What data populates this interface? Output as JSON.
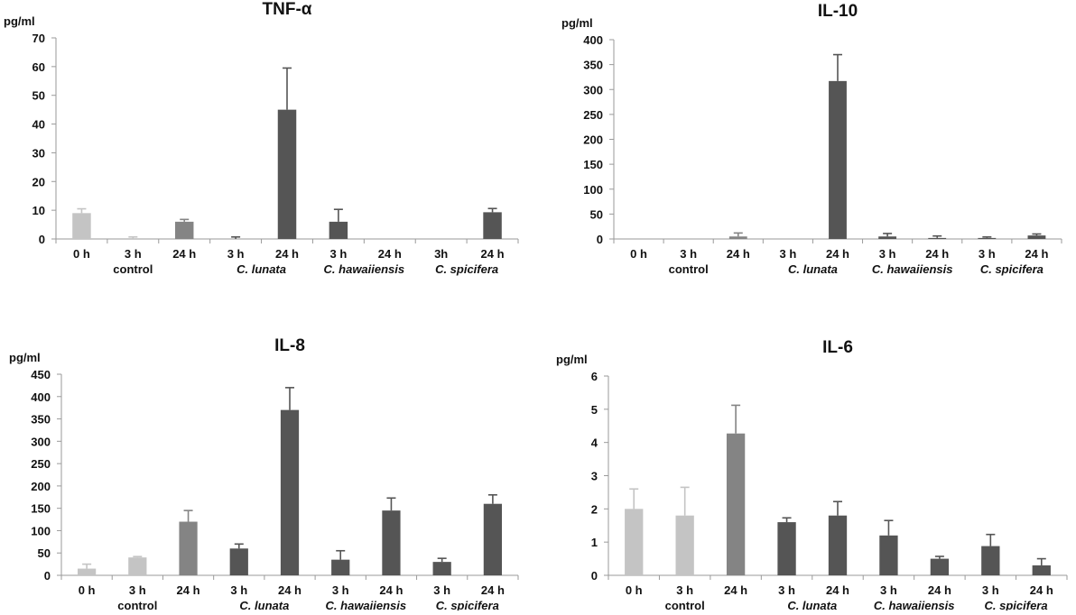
{
  "colors": {
    "light": "#c4c4c4",
    "medium": "#848484",
    "dark": "#555555",
    "error": "#555555",
    "axis": "#9a9a9a"
  },
  "chart_data": [
    {
      "id": "tnf",
      "type": "bar",
      "title": "TNF-α",
      "ylabel": "pg/ml",
      "ylim": [
        0,
        70
      ],
      "yticks": [
        0,
        10,
        20,
        30,
        40,
        50,
        60,
        70
      ],
      "categories": [
        "0 h",
        "3 h",
        "24 h",
        "3 h",
        "24 h",
        "3 h",
        "24 h",
        "3h",
        "24 h"
      ],
      "values": [
        9,
        0,
        6,
        0,
        45,
        6,
        0,
        0,
        9.3
      ],
      "errors": [
        1.5,
        0.7,
        0.8,
        0.7,
        14.5,
        4.3,
        0,
        0,
        1.3
      ],
      "bar_colors": [
        "light",
        "light",
        "medium",
        "dark",
        "dark",
        "dark",
        "dark",
        "dark",
        "dark"
      ],
      "groups": [
        {
          "label": "control",
          "italic": false,
          "start": 0,
          "end": 2
        },
        {
          "label": "C. lunata",
          "italic": true,
          "start": 3,
          "end": 4
        },
        {
          "label": "C. hawaiiensis",
          "italic": true,
          "start": 5,
          "end": 6
        },
        {
          "label": "C. spicifera",
          "italic": true,
          "start": 7,
          "end": 8
        }
      ]
    },
    {
      "id": "il10",
      "type": "bar",
      "title": "IL-10",
      "ylabel": "pg/ml",
      "ylim": [
        0,
        400
      ],
      "yticks": [
        0,
        50,
        100,
        150,
        200,
        250,
        300,
        350,
        400
      ],
      "categories": [
        "0 h",
        "3 h",
        "24 h",
        "3 h",
        "24 h",
        "3 h",
        "24 h",
        "3 h",
        "24 h"
      ],
      "values": [
        0,
        0,
        5,
        0,
        317,
        5,
        2,
        2,
        7
      ],
      "errors": [
        0,
        0,
        7,
        0,
        53,
        6,
        4,
        2,
        3
      ],
      "bar_colors": [
        "light",
        "light",
        "medium",
        "dark",
        "dark",
        "dark",
        "dark",
        "dark",
        "dark"
      ],
      "groups": [
        {
          "label": "control",
          "italic": false,
          "start": 0,
          "end": 2
        },
        {
          "label": "C. lunata",
          "italic": true,
          "start": 3,
          "end": 4
        },
        {
          "label": "C. hawaiiensis",
          "italic": true,
          "start": 5,
          "end": 6
        },
        {
          "label": "C. spicifera",
          "italic": true,
          "start": 7,
          "end": 8
        }
      ]
    },
    {
      "id": "il8",
      "type": "bar",
      "title": "IL-8",
      "ylabel": "pg/ml",
      "ylim": [
        0,
        450
      ],
      "yticks": [
        0,
        50,
        100,
        150,
        200,
        250,
        300,
        350,
        400,
        450
      ],
      "categories": [
        "0 h",
        "3 h",
        "24 h",
        "3 h",
        "24 h",
        "3 h",
        "24 h",
        "3 h",
        "24 h"
      ],
      "values": [
        15,
        40,
        120,
        60,
        370,
        35,
        145,
        30,
        160
      ],
      "errors": [
        10,
        2,
        25,
        10,
        50,
        20,
        28,
        8,
        20
      ],
      "bar_colors": [
        "light",
        "light",
        "medium",
        "dark",
        "dark",
        "dark",
        "dark",
        "dark",
        "dark"
      ],
      "groups": [
        {
          "label": "control",
          "italic": false,
          "start": 0,
          "end": 2
        },
        {
          "label": "C. lunata",
          "italic": true,
          "start": 3,
          "end": 4
        },
        {
          "label": "C. hawaiiensis",
          "italic": true,
          "start": 5,
          "end": 6
        },
        {
          "label": "C. spicifera",
          "italic": true,
          "start": 7,
          "end": 8
        }
      ]
    },
    {
      "id": "il6",
      "type": "bar",
      "title": "IL-6",
      "ylabel": "pg/ml",
      "ylim": [
        0,
        6
      ],
      "yticks": [
        0,
        1,
        2,
        3,
        4,
        5,
        6
      ],
      "categories": [
        "0 h",
        "3 h",
        "24 h",
        "3 h",
        "24 h",
        "3 h",
        "24 h",
        "3 h",
        "24 h"
      ],
      "values": [
        2.0,
        1.8,
        4.27,
        1.6,
        1.8,
        1.2,
        0.5,
        0.88,
        0.3
      ],
      "errors": [
        0.6,
        0.85,
        0.85,
        0.13,
        0.42,
        0.45,
        0.07,
        0.35,
        0.2
      ],
      "bar_colors": [
        "light",
        "light",
        "medium",
        "dark",
        "dark",
        "dark",
        "dark",
        "dark",
        "dark"
      ],
      "groups": [
        {
          "label": "control",
          "italic": false,
          "start": 0,
          "end": 2
        },
        {
          "label": "C. lunata",
          "italic": true,
          "start": 3,
          "end": 4
        },
        {
          "label": "C. hawaiiensis",
          "italic": true,
          "start": 5,
          "end": 6
        },
        {
          "label": "C. spicifera",
          "italic": true,
          "start": 7,
          "end": 8
        }
      ]
    }
  ]
}
